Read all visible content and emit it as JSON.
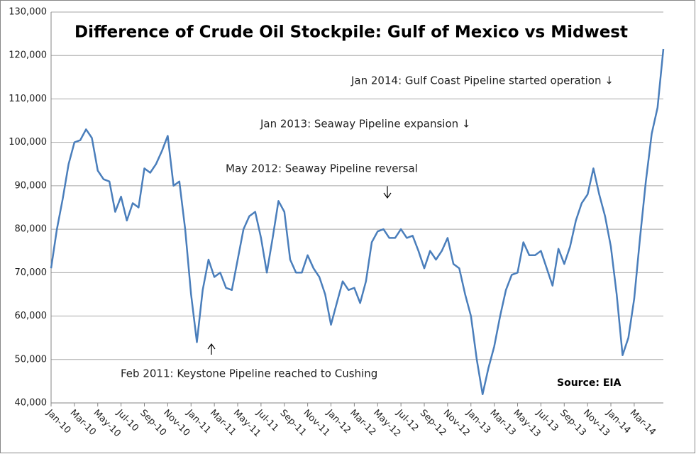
{
  "chart_data": {
    "type": "line",
    "title": "Difference of Crude Oil Stockpile: Gulf of Mexico vs Midwest",
    "categories": [
      "Jan-10",
      null,
      null,
      null,
      "Mar-10",
      null,
      null,
      null,
      "May-10",
      null,
      null,
      null,
      "Jul-10",
      null,
      null,
      null,
      "Sep-10",
      null,
      null,
      null,
      "Nov-10",
      null,
      null,
      null,
      "Jan-11",
      null,
      null,
      null,
      "Mar-11",
      null,
      null,
      null,
      "May-11",
      null,
      null,
      null,
      "Jul-11",
      null,
      null,
      null,
      "Sep-11",
      null,
      null,
      null,
      "Nov-11",
      null,
      null,
      null,
      "Jan-12",
      null,
      null,
      null,
      "Mar-12",
      null,
      null,
      null,
      "May-12",
      null,
      null,
      null,
      "Jul-12",
      null,
      null,
      null,
      "Sep-12",
      null,
      null,
      null,
      "Nov-12",
      null,
      null,
      null,
      "Jan-13",
      null,
      null,
      null,
      "Mar-13",
      null,
      null,
      null,
      "May-13",
      null,
      null,
      null,
      "Jul-13",
      null,
      null,
      null,
      "Sep-13",
      null,
      null,
      null,
      "Nov-13",
      null,
      null,
      null,
      "Jan-14",
      null,
      null,
      null,
      "Mar-14",
      null,
      null,
      null,
      null,
      null
    ],
    "series": [
      {
        "name": "Difference",
        "color": "#4a7ebb",
        "values": [
          71000,
          80000,
          87000,
          95000,
          100000,
          100500,
          103000,
          101000,
          93500,
          91500,
          91000,
          84000,
          87500,
          82000,
          86000,
          85000,
          94000,
          93000,
          95000,
          98000,
          101500,
          90000,
          91000,
          80000,
          65000,
          54000,
          66000,
          73000,
          69000,
          70000,
          66500,
          66000,
          73000,
          80000,
          83000,
          84000,
          78000,
          70000,
          78000,
          86500,
          84000,
          73000,
          70000,
          70000,
          74000,
          71000,
          69000,
          65000,
          58000,
          63000,
          68000,
          66000,
          66500,
          63000,
          68000,
          77000,
          79500,
          80000,
          78000,
          78000,
          80000,
          78000,
          78500,
          75000,
          71000,
          75000,
          73000,
          75000,
          78000,
          72000,
          71000,
          65000,
          60000,
          50000,
          42000,
          48000,
          53000,
          60000,
          66000,
          69500,
          70000,
          77000,
          74000,
          74000,
          75000,
          71000,
          67000,
          75500,
          72000,
          76000,
          82000,
          86000,
          88000,
          94000,
          88000,
          83000,
          76000,
          65000,
          51000,
          55000,
          64000,
          78000,
          91000,
          102000,
          108000,
          121500
        ]
      }
    ],
    "ylim": [
      40000,
      130000
    ],
    "yticks": [
      {
        "value": 40000,
        "label": "40,000"
      },
      {
        "value": 50000,
        "label": "50,000"
      },
      {
        "value": 60000,
        "label": "60,000"
      },
      {
        "value": 70000,
        "label": "70,000"
      },
      {
        "value": 80000,
        "label": "80,000"
      },
      {
        "value": 90000,
        "label": "90,000"
      },
      {
        "value": 100000,
        "label": "100,000"
      },
      {
        "value": 110000,
        "label": "110,000"
      },
      {
        "value": 120000,
        "label": "120,000"
      },
      {
        "value": 130000,
        "label": "130,000"
      }
    ],
    "grid": true,
    "annotations": [
      "Jan 2014: Gulf Coast Pipeline started operation ↓",
      "Jan 2013: Seaway Pipeline expansion ↓",
      "May 2012: Seaway Pipeline reversal",
      "Feb 2011: Keystone Pipeline reached to Cushing",
      "Source: EIA"
    ]
  }
}
